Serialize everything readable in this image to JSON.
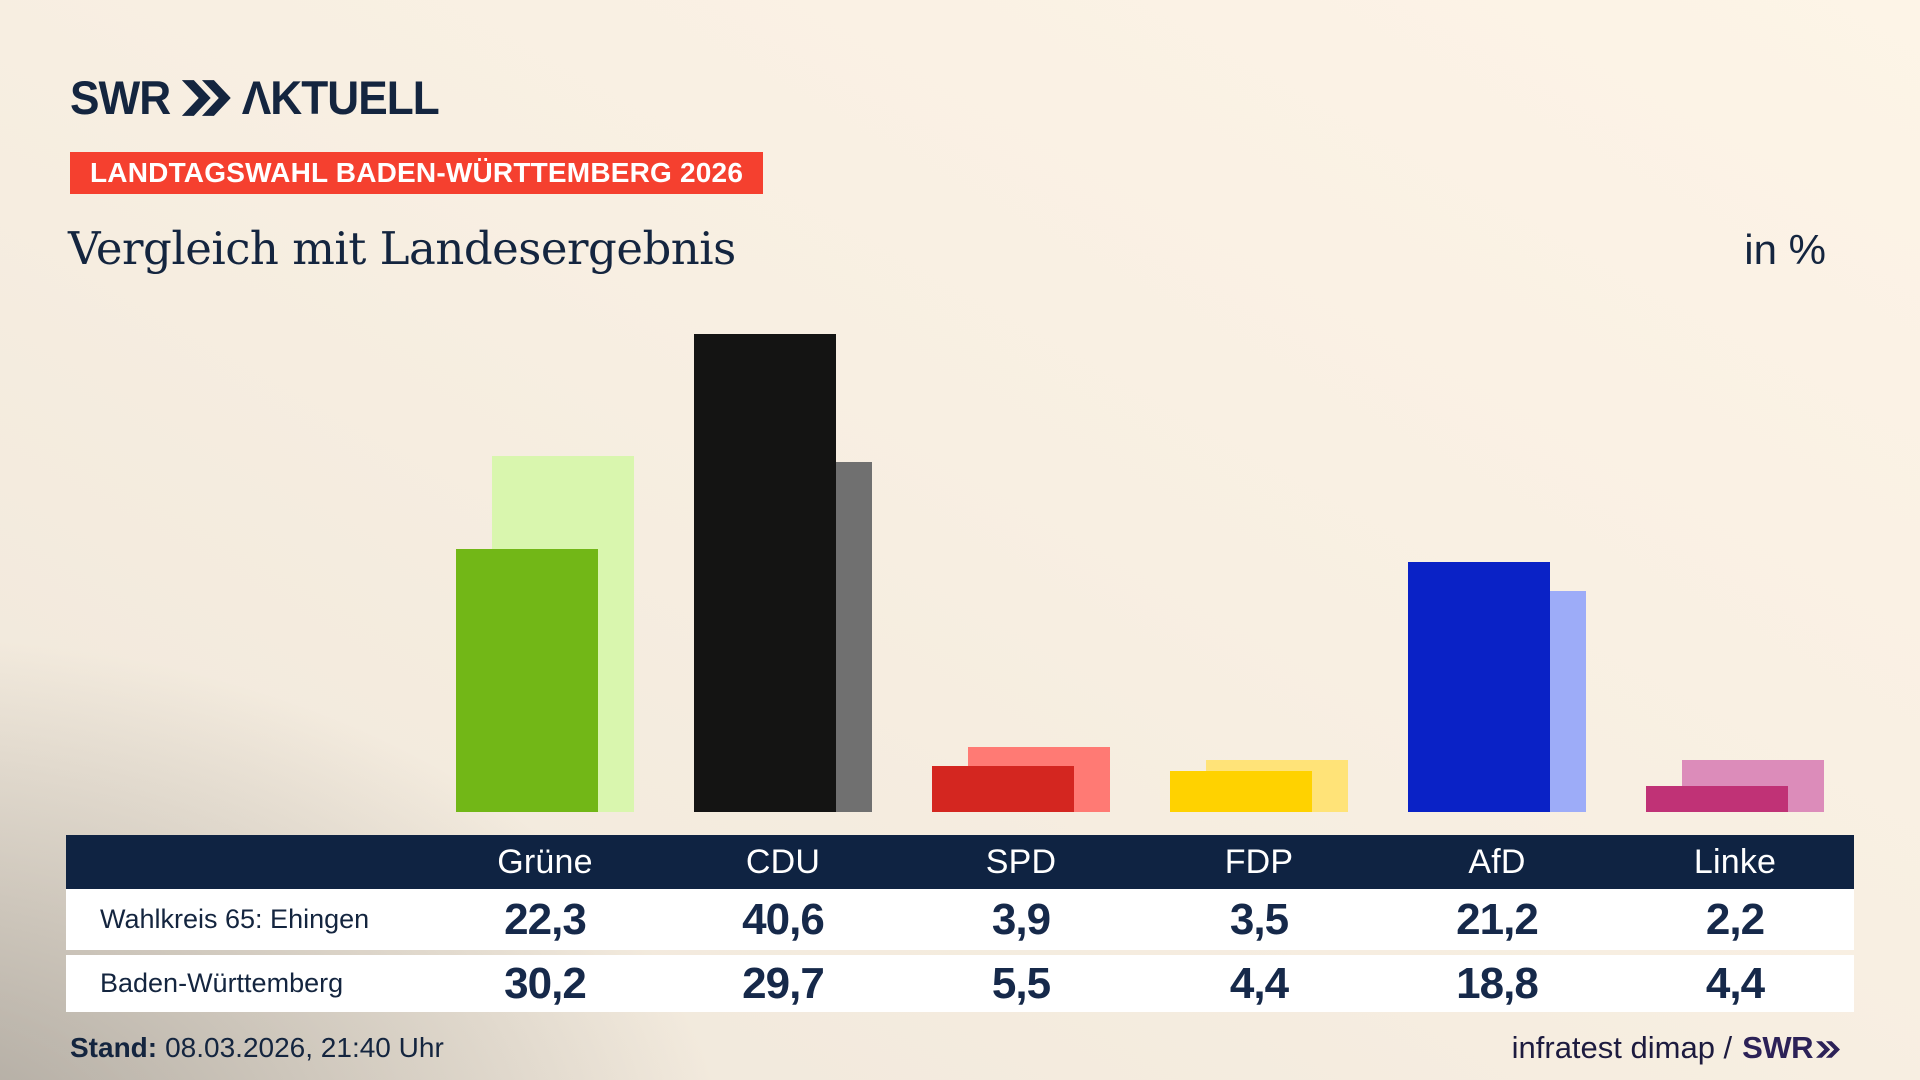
{
  "brand": {
    "logo_text": "SWR",
    "logo_suffix": "ΛKTUELL"
  },
  "badge": {
    "label": "LANDTAGSWAHL BADEN-WÜRTTEMBERG 2026",
    "bg": "#f5402f",
    "fg": "#ffffff"
  },
  "title": "Vergleich mit Landesergebnis",
  "unit_label": "in %",
  "chart_data": {
    "type": "bar",
    "title": "Vergleich mit Landesergebnis",
    "unit": "%",
    "categories": [
      "Grüne",
      "CDU",
      "SPD",
      "FDP",
      "AfD",
      "Linke"
    ],
    "series": [
      {
        "name": "Wahlkreis 65: Ehingen",
        "values": [
          22.3,
          40.6,
          3.9,
          3.5,
          21.2,
          2.2
        ]
      },
      {
        "name": "Baden-Württemberg",
        "values": [
          30.2,
          29.7,
          5.5,
          4.4,
          18.8,
          4.4
        ]
      }
    ],
    "value_labels": [
      [
        "22,3",
        "40,6",
        "3,9",
        "3,5",
        "21,2",
        "2,2"
      ],
      [
        "30,2",
        "29,7",
        "5,5",
        "4,4",
        "18,8",
        "4,4"
      ]
    ],
    "colors": {
      "front": [
        "#72b717",
        "#141413",
        "#d42620",
        "#ffd200",
        "#0a22c6",
        "#c03276"
      ],
      "back": [
        "#d9f6ae",
        "#707070",
        "#ff7a74",
        "#ffe378",
        "#9dacf8",
        "#dc8cba"
      ]
    },
    "header_bg": "#0f2342",
    "ylim": [
      0,
      46
    ],
    "grid": false,
    "legend_position": "table-rows"
  },
  "footer": {
    "stand_label": "Stand:",
    "stand_value": "08.03.2026, 21:40 Uhr",
    "credit_text": "infratest dimap /",
    "credit_brand": "SWR"
  }
}
